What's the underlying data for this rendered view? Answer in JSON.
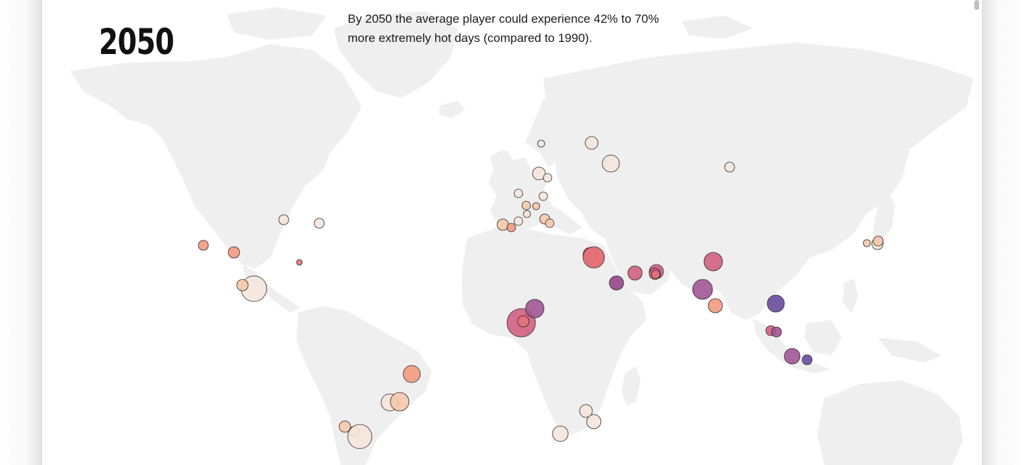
{
  "header": {
    "year": "2050",
    "caption": "By 2050 the average player could experience 42% to 70% more extremely hot days (compared to 1990)."
  },
  "colors": {
    "land": "#efefef",
    "ocean": "#ffffff",
    "scale": [
      "#f5e6dc",
      "#f6c8ab",
      "#f29a7e",
      "#e57077",
      "#d2617f",
      "#a05595",
      "#6a4a9e"
    ]
  },
  "cities": [
    {
      "r": 5,
      "c": 0
    },
    {
      "r": 9,
      "c": 0
    },
    {
      "r": 12,
      "c": 0
    },
    {
      "r": 7,
      "c": 0
    },
    {
      "r": 9,
      "c": 0
    },
    {
      "r": 6,
      "c": 0
    },
    {
      "r": 6,
      "c": 0
    },
    {
      "r": 6,
      "c": 0
    },
    {
      "r": 5,
      "c": 1
    },
    {
      "r": 6,
      "c": 1
    },
    {
      "r": 5,
      "c": 0
    },
    {
      "r": 8,
      "c": 1
    },
    {
      "r": 6,
      "c": 0
    },
    {
      "r": 6,
      "c": 2
    },
    {
      "r": 7,
      "c": 1
    },
    {
      "r": 6,
      "c": 1
    },
    {
      "r": 7,
      "c": 0
    },
    {
      "r": 7,
      "c": 2
    },
    {
      "r": 8,
      "c": 2
    },
    {
      "r": 4,
      "c": 3
    },
    {
      "r": 18,
      "c": 0
    },
    {
      "r": 8,
      "c": 1
    },
    {
      "r": 7,
      "c": 0
    },
    {
      "r": 13,
      "c": 3
    },
    {
      "r": 10,
      "c": 3
    },
    {
      "r": 10,
      "c": 4
    },
    {
      "r": 9,
      "c": 5
    },
    {
      "r": 10,
      "c": 4
    },
    {
      "r": 8,
      "c": 4
    },
    {
      "r": 6,
      "c": 3
    },
    {
      "r": 13,
      "c": 4
    },
    {
      "r": 14,
      "c": 5
    },
    {
      "r": 10,
      "c": 2
    },
    {
      "r": 12,
      "c": 6
    },
    {
      "r": 7,
      "c": 4
    },
    {
      "r": 7,
      "c": 5
    },
    {
      "r": 11,
      "c": 5
    },
    {
      "r": 7,
      "c": 6
    },
    {
      "r": 20,
      "c": 4
    },
    {
      "r": 13,
      "c": 5
    },
    {
      "r": 8,
      "c": 3
    },
    {
      "r": 12,
      "c": 0
    },
    {
      "r": 13,
      "c": 1
    },
    {
      "r": 12,
      "c": 2
    },
    {
      "r": 8,
      "c": 1
    },
    {
      "r": 7,
      "c": 1
    },
    {
      "r": 17,
      "c": 0
    },
    {
      "r": 9,
      "c": 0
    },
    {
      "r": 10,
      "c": 0
    },
    {
      "r": 11,
      "c": 0
    },
    {
      "r": 8,
      "c": 0
    },
    {
      "r": 5,
      "c": 1
    },
    {
      "r": 7,
      "c": 1
    },
    {
      "r": 15,
      "c": 3
    },
    {
      "r": 10,
      "c": 5
    }
  ]
}
